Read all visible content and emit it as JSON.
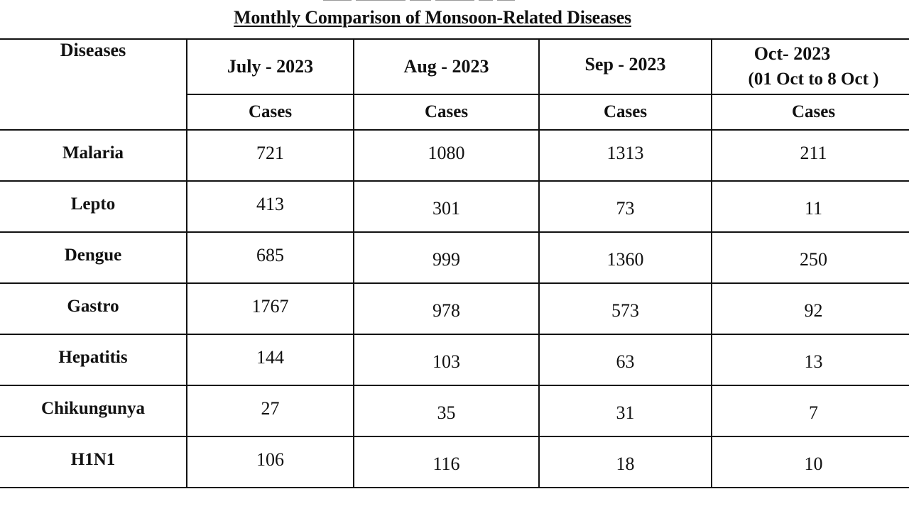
{
  "title": "Monthly Comparison of Monsoon-Related Diseases",
  "table": {
    "disease_header": "Diseases",
    "months": [
      "July - 2023",
      "Aug - 2023",
      "Sep - 2023"
    ],
    "oct_header_line1": "Oct- 2023",
    "oct_header_line2": "(01 Oct to 8 Oct )",
    "subheader": "Cases",
    "rows": [
      {
        "disease": "Malaria",
        "jul": "721",
        "aug": "1080",
        "sep": "1313",
        "oct": "211"
      },
      {
        "disease": "Lepto",
        "jul": "413",
        "aug": "301",
        "sep": "73",
        "oct": "11"
      },
      {
        "disease": "Dengue",
        "jul": "685",
        "aug": "999",
        "sep": "1360",
        "oct": "250"
      },
      {
        "disease": "Gastro",
        "jul": "1767",
        "aug": "978",
        "sep": "573",
        "oct": "92"
      },
      {
        "disease": "Hepatitis",
        "jul": "144",
        "aug": "103",
        "sep": "63",
        "oct": "13"
      },
      {
        "disease": "Chikungunya",
        "jul": "27",
        "aug": "35",
        "sep": "31",
        "oct": "7"
      },
      {
        "disease": "H1N1",
        "jul": "106",
        "aug": "116",
        "sep": "18",
        "oct": "10"
      }
    ]
  }
}
